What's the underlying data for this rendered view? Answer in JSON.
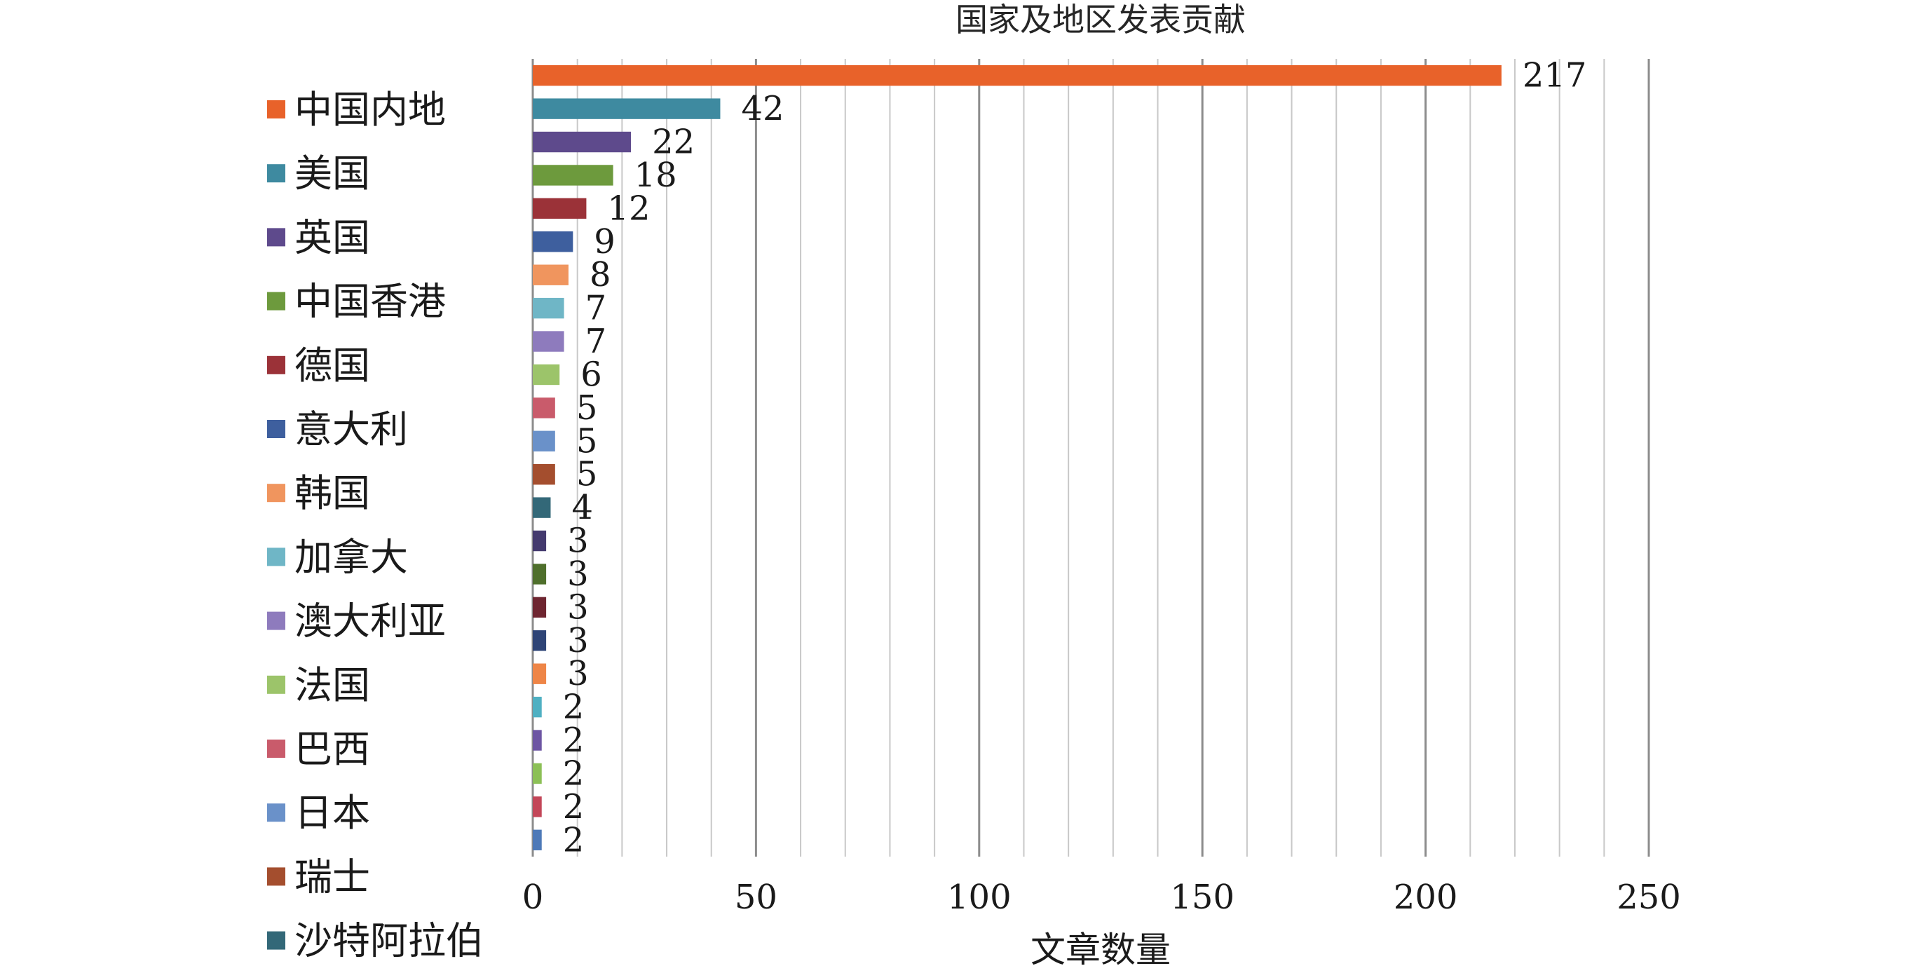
{
  "chart_data": {
    "type": "bar",
    "orientation": "horizontal",
    "title": "国家及地区发表贡献",
    "xlabel": "文章数量",
    "ylabel": "",
    "xlim": [
      0,
      250
    ],
    "x_ticks": [
      0,
      50,
      100,
      150,
      200,
      250
    ],
    "grid": true,
    "legend_position": "left",
    "series": [
      {
        "name": "中国内地",
        "value": 217,
        "color": "#E8622A"
      },
      {
        "name": "美国",
        "value": 42,
        "color": "#3E8AA0"
      },
      {
        "name": "英国",
        "value": 22,
        "color": "#5E4A8C"
      },
      {
        "name": "中国香港",
        "value": 18,
        "color": "#6D9A3D"
      },
      {
        "name": "德国",
        "value": 12,
        "color": "#9B3238"
      },
      {
        "name": "意大利",
        "value": 9,
        "color": "#3E5F9E"
      },
      {
        "name": "韩国",
        "value": 8,
        "color": "#F0955E"
      },
      {
        "name": "加拿大",
        "value": 7,
        "color": "#6FB6C6"
      },
      {
        "name": "澳大利亚",
        "value": 7,
        "color": "#8E7BBD"
      },
      {
        "name": "法国",
        "value": 6,
        "color": "#9CC46A"
      },
      {
        "name": "巴西",
        "value": 5,
        "color": "#C95B6B"
      },
      {
        "name": "日本",
        "value": 5,
        "color": "#6A91C9"
      },
      {
        "name": "瑞士",
        "value": 5,
        "color": "#A44E2E"
      },
      {
        "name": "沙特阿拉伯",
        "value": 4,
        "color": "#336878"
      },
      {
        "name": "",
        "value": 3,
        "color": "#443A6E"
      },
      {
        "name": "",
        "value": 3,
        "color": "#4F6F2C"
      },
      {
        "name": "",
        "value": 3,
        "color": "#6E2530"
      },
      {
        "name": "",
        "value": 3,
        "color": "#2E4476"
      },
      {
        "name": "",
        "value": 3,
        "color": "#EE8547"
      },
      {
        "name": "",
        "value": 2,
        "color": "#4FB0C2"
      },
      {
        "name": "",
        "value": 2,
        "color": "#6D55A3"
      },
      {
        "name": "",
        "value": 2,
        "color": "#8CC056"
      },
      {
        "name": "",
        "value": 2,
        "color": "#C34658"
      },
      {
        "name": "",
        "value": 2,
        "color": "#4D79B8"
      }
    ]
  }
}
